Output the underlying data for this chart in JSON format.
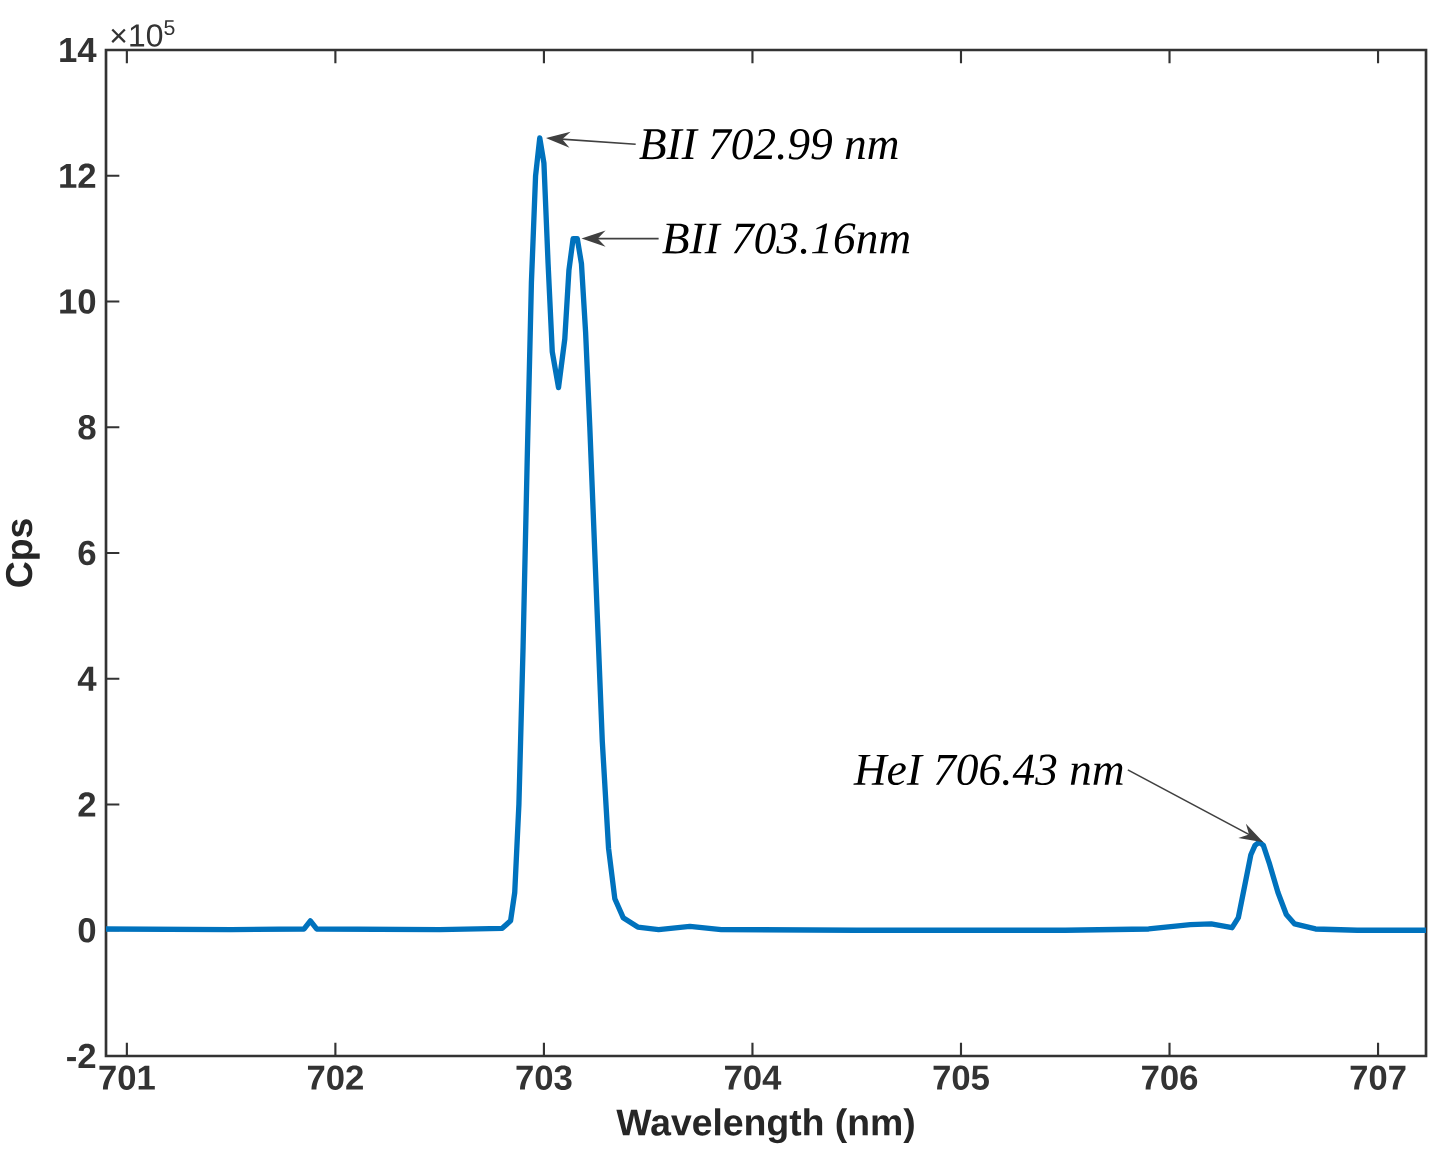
{
  "chart_data": {
    "type": "line",
    "xlabel": "Wavelength (nm)",
    "ylabel": "Cps",
    "xlim": [
      700.9,
      707.23
    ],
    "xticks": [
      701,
      702,
      703,
      704,
      705,
      706,
      707
    ],
    "ylim": [
      -2,
      14
    ],
    "yticks": [
      -2,
      0,
      2,
      4,
      6,
      8,
      10,
      12,
      14
    ],
    "marker": "none",
    "line_style": "solid",
    "series": [
      {
        "color": "#0072bd",
        "x": [
          700.9,
          701.5,
          701.85,
          701.88,
          701.91,
          702.5,
          702.8,
          702.84,
          702.86,
          702.88,
          702.9,
          702.92,
          702.94,
          702.96,
          702.98,
          703.0,
          703.02,
          703.04,
          703.07,
          703.1,
          703.12,
          703.14,
          703.16,
          703.18,
          703.2,
          703.22,
          703.25,
          703.28,
          703.31,
          703.34,
          703.38,
          703.45,
          703.55,
          703.7,
          703.85,
          704.5,
          705.5,
          705.9,
          706.1,
          706.2,
          706.3,
          706.33,
          706.36,
          706.39,
          706.41,
          706.43,
          706.45,
          706.48,
          706.52,
          706.56,
          706.6,
          706.7,
          706.9,
          707.23
        ],
        "values": [
          0.02,
          0.01,
          0.02,
          0.15,
          0.02,
          0.01,
          0.03,
          0.15,
          0.6,
          2.0,
          4.5,
          7.5,
          10.3,
          12.0,
          12.6,
          12.2,
          10.6,
          9.2,
          8.63,
          9.4,
          10.5,
          11.0,
          11.0,
          10.6,
          9.5,
          8.0,
          5.5,
          3.0,
          1.3,
          0.5,
          0.2,
          0.05,
          0.01,
          0.06,
          0.01,
          0,
          0,
          0.02,
          0.09,
          0.1,
          0.04,
          0.2,
          0.7,
          1.2,
          1.35,
          1.4,
          1.35,
          1.05,
          0.6,
          0.25,
          0.1,
          0.02,
          0,
          0
        ]
      }
    ],
    "annotations": [
      {
        "text": "BII 702.99 nm",
        "x": 702.99,
        "y": 12.6
      },
      {
        "text": "BII 703.16nm",
        "x": 703.16,
        "y": 11.0
      },
      {
        "text": "HeI 706.43 nm",
        "x": 706.43,
        "y": 1.4
      },
      "×10$^{5}$"
    ]
  }
}
